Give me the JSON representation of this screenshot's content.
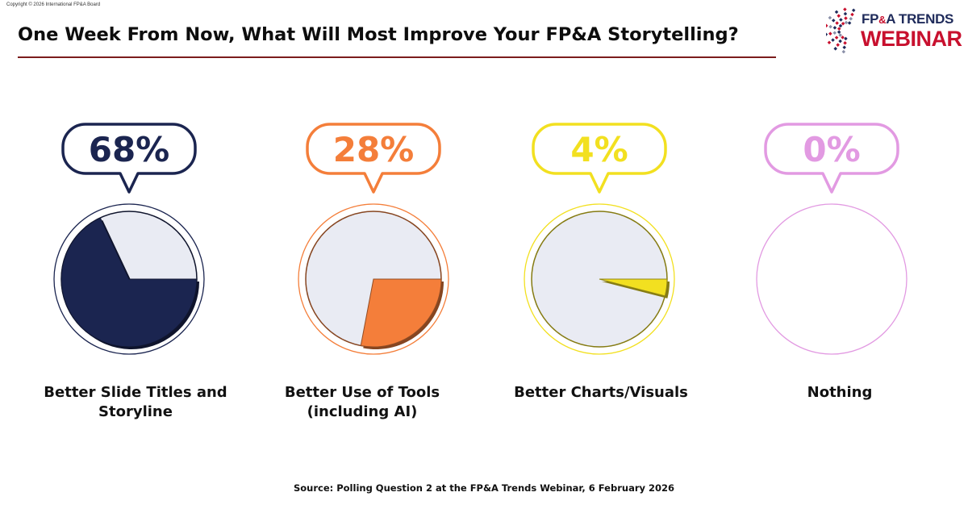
{
  "copyright": "Copyright © 2026 International FP&A Board",
  "title": "One Week From Now, What Will Most Improve Your FP&A Storytelling?",
  "logo": {
    "line1_a": "FP",
    "line1_amp": "&",
    "line1_b": "A TRENDS",
    "line2": "WEBINAR"
  },
  "source": "Source: Polling Question 2 at the FP&A Trends Webinar, 6 February 2026",
  "chart_data": {
    "type": "pie",
    "series": [
      {
        "label": "Better Slide Titles and Storyline",
        "value": 68,
        "display": "68%",
        "color": "#1b2550"
      },
      {
        "label": "Better Use of Tools (including AI)",
        "value": 28,
        "display": "28%",
        "color": "#f47e3a"
      },
      {
        "label": "Better Charts/Visuals",
        "value": 4,
        "display": "4%",
        "color": "#f2e020"
      },
      {
        "label": "Nothing",
        "value": 0,
        "display": "0%",
        "color": "#e29ae2"
      }
    ],
    "remainder_color": "#e9ebf3"
  }
}
